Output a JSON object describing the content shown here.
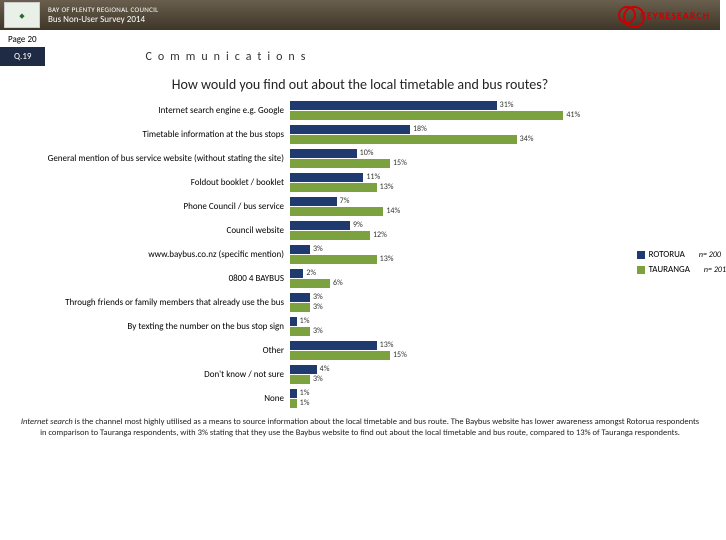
{
  "header": {
    "org": "BAY OF PLENTY REGIONAL COUNCIL",
    "survey": "Bus Non-User Survey 2014",
    "brand": "KEYRESEARCH"
  },
  "page_label": "Page 20",
  "q_num": "Q.19",
  "section": "Communications",
  "question": "How would you find out about the local timetable and bus routes?",
  "chart": {
    "type": "bar",
    "orientation": "horizontal",
    "x_max": 45,
    "series": [
      {
        "name": "ROTORUA",
        "color": "#1f3a6e",
        "n": "n= 200"
      },
      {
        "name": "TAURANGA",
        "color": "#7ba23f",
        "n": "n= 201"
      }
    ],
    "categories": [
      {
        "label": "Internet search engine e.g. Google",
        "vals": [
          31,
          41
        ],
        "labels": [
          "31%",
          "41%"
        ]
      },
      {
        "label": "Timetable information at the bus stops",
        "vals": [
          18,
          34
        ],
        "labels": [
          "18%",
          "34%"
        ]
      },
      {
        "label": "General mention of bus service website (without stating the site)",
        "vals": [
          10,
          15
        ],
        "labels": [
          "10%",
          "15%"
        ]
      },
      {
        "label": "Foldout booklet / booklet",
        "vals": [
          11,
          13
        ],
        "labels": [
          "11%",
          "13%"
        ]
      },
      {
        "label": "Phone Council / bus service",
        "vals": [
          7,
          14
        ],
        "labels": [
          "7%",
          "14%"
        ]
      },
      {
        "label": "Council website",
        "vals": [
          9,
          12
        ],
        "labels": [
          "9%",
          "12%"
        ]
      },
      {
        "label": "www.baybus.co.nz (specific mention)",
        "vals": [
          3,
          13
        ],
        "labels": [
          "3%",
          "13%"
        ]
      },
      {
        "label": "0800 4 BAYBUS",
        "vals": [
          2,
          6
        ],
        "labels": [
          "2%",
          "6%"
        ]
      },
      {
        "label": "Through friends or family members that already use the bus",
        "vals": [
          3,
          3
        ],
        "labels": [
          "3%",
          "3%"
        ]
      },
      {
        "label": "By texting the number on the bus stop sign",
        "vals": [
          1,
          3
        ],
        "labels": [
          "1%",
          "3%"
        ]
      },
      {
        "label": "Other",
        "vals": [
          13,
          15
        ],
        "labels": [
          "13%",
          "15%"
        ]
      },
      {
        "label": "Don't know / not sure",
        "vals": [
          4,
          3
        ],
        "labels": [
          "4%",
          "3%"
        ]
      },
      {
        "label": "None",
        "vals": [
          1,
          1
        ],
        "labels": [
          "1%",
          "1%"
        ]
      }
    ]
  },
  "footnote_em": "Internet search",
  "footnote_rest": " is the channel most highly utilised as a means to source information about the local timetable and bus route. The Baybus website has lower awareness amongst Rotorua respondents in comparison to Tauranga respondents, with 3% stating that they use the Baybus website to find out about the local timetable and bus route, compared to 13% of Tauranga respondents."
}
